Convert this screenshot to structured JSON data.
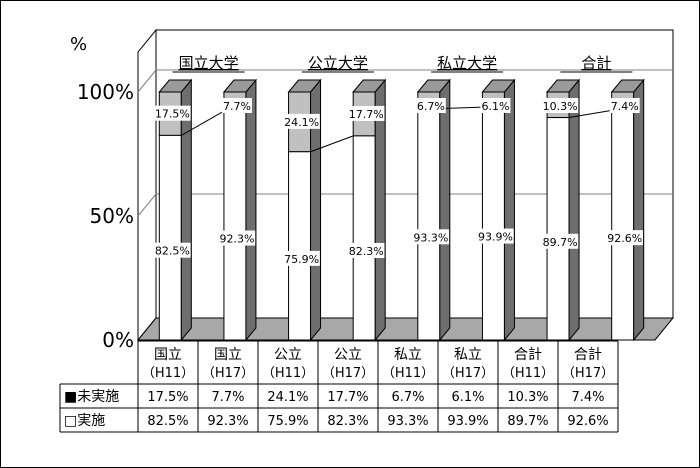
{
  "chart_data": {
    "type": "bar",
    "stacked": true,
    "percent_stacked": true,
    "unit_label": "%",
    "ylim": [
      0,
      100
    ],
    "y_ticks": [
      "0%",
      "50%",
      "100%"
    ],
    "groups": [
      "国立大学",
      "公立大学",
      "私立大学",
      "合計"
    ],
    "categories": [
      {
        "line1": "国立",
        "line2": "（H11）"
      },
      {
        "line1": "国立",
        "line2": "（H17）"
      },
      {
        "line1": "公立",
        "line2": "（H11）"
      },
      {
        "line1": "公立",
        "line2": "（H17）"
      },
      {
        "line1": "私立",
        "line2": "（H11）"
      },
      {
        "line1": "私立",
        "line2": "（H17）"
      },
      {
        "line1": "合計",
        "line2": "（H11）"
      },
      {
        "line1": "合計",
        "line2": "（H17）"
      }
    ],
    "series": [
      {
        "name": "未実施",
        "color": "#c0c0c0",
        "values": [
          17.5,
          7.7,
          24.1,
          17.7,
          6.7,
          6.1,
          10.3,
          7.4
        ],
        "labels": [
          "17.5%",
          "7.7%",
          "24.1%",
          "17.7%",
          "6.7%",
          "6.1%",
          "10.3%",
          "7.4%"
        ]
      },
      {
        "name": "実施",
        "color": "#ffffff",
        "values": [
          82.5,
          92.3,
          75.9,
          82.3,
          93.3,
          93.9,
          89.7,
          92.6
        ],
        "labels": [
          "82.5%",
          "92.3%",
          "75.9%",
          "82.3%",
          "93.3%",
          "93.9%",
          "89.7%",
          "92.6%"
        ]
      }
    ],
    "table_rows": [
      {
        "label": "■未実施",
        "cells": [
          "17.5%",
          "7.7%",
          "24.1%",
          "17.7%",
          "6.7%",
          "6.1%",
          "10.3%",
          "7.4%"
        ]
      },
      {
        "label": "□実施",
        "cells": [
          "82.5%",
          "92.3%",
          "75.9%",
          "82.3%",
          "93.3%",
          "93.9%",
          "89.7%",
          "92.6%"
        ]
      }
    ],
    "grid": true,
    "colors": {
      "bar_side": "#6e6e6e",
      "floor": "#a8a8a8",
      "back_wall": "#ffffff",
      "gridline": "#808080"
    }
  }
}
